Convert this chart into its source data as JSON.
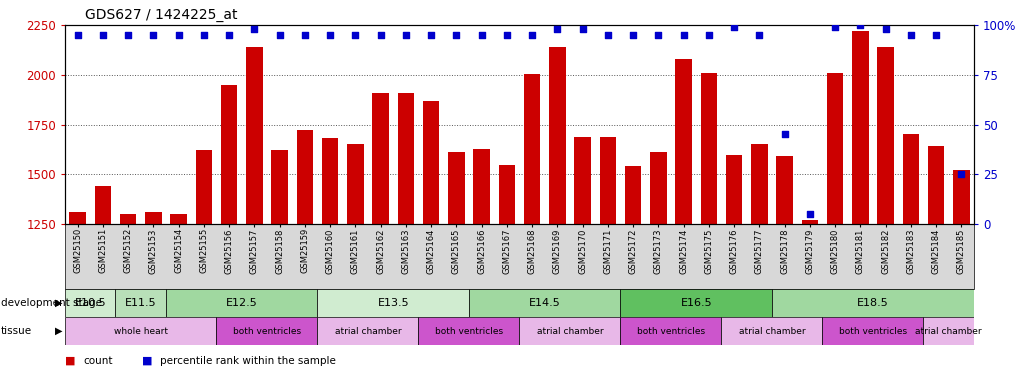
{
  "title": "GDS627 / 1424225_at",
  "samples": [
    "GSM25150",
    "GSM25151",
    "GSM25152",
    "GSM25153",
    "GSM25154",
    "GSM25155",
    "GSM25156",
    "GSM25157",
    "GSM25158",
    "GSM25159",
    "GSM25160",
    "GSM25161",
    "GSM25162",
    "GSM25163",
    "GSM25164",
    "GSM25165",
    "GSM25166",
    "GSM25167",
    "GSM25168",
    "GSM25169",
    "GSM25170",
    "GSM25171",
    "GSM25172",
    "GSM25173",
    "GSM25174",
    "GSM25175",
    "GSM25176",
    "GSM25177",
    "GSM25178",
    "GSM25179",
    "GSM25180",
    "GSM25181",
    "GSM25182",
    "GSM25183",
    "GSM25184",
    "GSM25185"
  ],
  "counts": [
    1310,
    1440,
    1300,
    1310,
    1300,
    1620,
    1950,
    2140,
    1620,
    1720,
    1680,
    1650,
    1910,
    1910,
    1870,
    1610,
    1625,
    1545,
    2005,
    2140,
    1685,
    1685,
    1540,
    1610,
    2080,
    2010,
    1595,
    1650,
    1590,
    1270,
    2010,
    2220,
    2140,
    1700,
    1640,
    1520
  ],
  "percentile_ranks": [
    95,
    95,
    95,
    95,
    95,
    95,
    95,
    98,
    95,
    95,
    95,
    95,
    95,
    95,
    95,
    95,
    95,
    95,
    95,
    98,
    98,
    95,
    95,
    95,
    95,
    95,
    99,
    95,
    45,
    5,
    99,
    100,
    98,
    95,
    95,
    25
  ],
  "bar_color": "#cc0000",
  "dot_color": "#0000cc",
  "bg_color": "#ffffff",
  "xtick_bg": "#d8d8d8",
  "ylim": [
    1250,
    2250
  ],
  "y_ticks": [
    1250,
    1500,
    1750,
    2000,
    2250
  ],
  "right_yticks": [
    0,
    25,
    50,
    75,
    100
  ],
  "dev_stages": [
    {
      "label": "E10.5",
      "start": 0,
      "end": 1,
      "color": "#d0ecd0"
    },
    {
      "label": "E11.5",
      "start": 2,
      "end": 3,
      "color": "#b8e0b8"
    },
    {
      "label": "E12.5",
      "start": 4,
      "end": 9,
      "color": "#a0d8a0"
    },
    {
      "label": "E13.5",
      "start": 10,
      "end": 15,
      "color": "#d0ecd0"
    },
    {
      "label": "E14.5",
      "start": 16,
      "end": 21,
      "color": "#a0d8a0"
    },
    {
      "label": "E16.5",
      "start": 22,
      "end": 27,
      "color": "#60c060"
    },
    {
      "label": "E18.5",
      "start": 28,
      "end": 35,
      "color": "#a0d8a0"
    }
  ],
  "tissues": [
    {
      "label": "whole heart",
      "start": 0,
      "end": 5,
      "color": "#e8b8e8"
    },
    {
      "label": "both ventricles",
      "start": 6,
      "end": 9,
      "color": "#cc55cc"
    },
    {
      "label": "atrial chamber",
      "start": 10,
      "end": 13,
      "color": "#e8b8e8"
    },
    {
      "label": "both ventricles",
      "start": 14,
      "end": 17,
      "color": "#cc55cc"
    },
    {
      "label": "atrial chamber",
      "start": 18,
      "end": 21,
      "color": "#e8b8e8"
    },
    {
      "label": "both ventricles",
      "start": 22,
      "end": 25,
      "color": "#cc55cc"
    },
    {
      "label": "atrial chamber",
      "start": 26,
      "end": 29,
      "color": "#e8b8e8"
    },
    {
      "label": "both ventricles",
      "start": 30,
      "end": 33,
      "color": "#cc55cc"
    },
    {
      "label": "atrial chamber",
      "start": 34,
      "end": 35,
      "color": "#e8b8e8"
    }
  ],
  "grid_color": "#555555",
  "left_color": "#cc0000",
  "right_color": "#0000cc",
  "count_legend": "count",
  "pct_legend": "percentile rank within the sample",
  "dev_label": "development stage",
  "tissue_label": "tissue"
}
